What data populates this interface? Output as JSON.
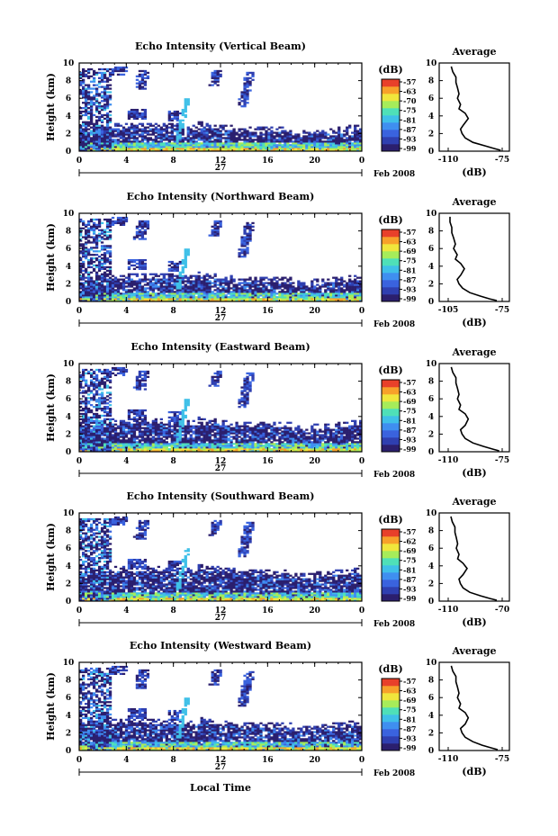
{
  "figure": {
    "xlabel": "Local Time",
    "date_label": "Feb 2008",
    "day_label": "27",
    "height_label": "Height (km)",
    "colorbar_unit": "(dB)",
    "avg_title": "Average",
    "avg_xlabel": "(dB)"
  },
  "chart_data": [
    {
      "type": "heatmap",
      "title": "Echo Intensity (Vertical Beam)",
      "xlabel": "Local Time",
      "ylabel": "Height (km)",
      "xlim": [
        0,
        24
      ],
      "ylim": [
        0,
        10
      ],
      "x_ticks": [
        "0",
        "4",
        "8",
        "12",
        "16",
        "20",
        "0"
      ],
      "y_ticks": [
        "0",
        "2",
        "4",
        "6",
        "8",
        "10"
      ],
      "colorbar_ticks": [
        "-57",
        "-63",
        "-70",
        "-75",
        "-81",
        "-87",
        "-93",
        "-99"
      ],
      "avg_profile": {
        "type": "line",
        "title": "Average",
        "xlabel": "(dB)",
        "xlim": [
          -110,
          -75
        ],
        "x_ticks": [
          "-110",
          "-75"
        ],
        "y_ticks": [
          "0",
          "2",
          "4",
          "6",
          "8",
          "10"
        ],
        "x": [
          -76,
          -80,
          -86,
          -94,
          -99,
          -101,
          -102,
          -100,
          -97,
          -99,
          -103,
          -102,
          -104,
          -103,
          -104,
          -105,
          -105,
          -107,
          -108
        ],
        "y": [
          0.1,
          0.3,
          0.6,
          1.0,
          1.5,
          2.0,
          2.5,
          3.0,
          3.7,
          4.3,
          4.8,
          5.3,
          6.0,
          6.5,
          7.2,
          7.8,
          8.4,
          9.0,
          9.6
        ]
      }
    },
    {
      "type": "heatmap",
      "title": "Echo Intensity (Northward Beam)",
      "xlabel": "Local Time",
      "ylabel": "Height (km)",
      "xlim": [
        0,
        24
      ],
      "ylim": [
        0,
        10
      ],
      "x_ticks": [
        "0",
        "4",
        "8",
        "12",
        "16",
        "20",
        "0"
      ],
      "y_ticks": [
        "0",
        "2",
        "4",
        "6",
        "8",
        "10"
      ],
      "colorbar_ticks": [
        "-57",
        "-63",
        "-69",
        "-75",
        "-81",
        "-87",
        "-93",
        "-99"
      ],
      "avg_profile": {
        "type": "line",
        "title": "Average",
        "xlabel": "(dB)",
        "xlim": [
          -105,
          -75
        ],
        "x_ticks": [
          "-105",
          "-75"
        ],
        "y_ticks": [
          "0",
          "2",
          "4",
          "6",
          "8",
          "10"
        ],
        "x": [
          -78,
          -82,
          -87,
          -93,
          -97,
          -99,
          -100,
          -98,
          -96,
          -98,
          -101,
          -100,
          -102,
          -101,
          -102,
          -103,
          -103,
          -104,
          -104
        ],
        "y": [
          0.1,
          0.3,
          0.6,
          1.0,
          1.5,
          2.0,
          2.5,
          3.0,
          3.7,
          4.3,
          4.8,
          5.3,
          6.0,
          6.5,
          7.2,
          7.8,
          8.4,
          9.0,
          9.6
        ]
      }
    },
    {
      "type": "heatmap",
      "title": "Echo Intensity (Eastward Beam)",
      "xlabel": "Local Time",
      "ylabel": "Height (km)",
      "xlim": [
        0,
        24
      ],
      "ylim": [
        0,
        10
      ],
      "x_ticks": [
        "0",
        "4",
        "8",
        "12",
        "16",
        "20",
        "0"
      ],
      "y_ticks": [
        "0",
        "2",
        "4",
        "6",
        "8",
        "10"
      ],
      "colorbar_ticks": [
        "-57",
        "-63",
        "-69",
        "-75",
        "-81",
        "-87",
        "-93",
        "-99"
      ],
      "avg_profile": {
        "type": "line",
        "title": "Average",
        "xlabel": "(dB)",
        "xlim": [
          -110,
          -75
        ],
        "x_ticks": [
          "-110",
          "-75"
        ],
        "y_ticks": [
          "0",
          "2",
          "4",
          "6",
          "8",
          "10"
        ],
        "x": [
          -77,
          -81,
          -87,
          -94,
          -99,
          -101,
          -102,
          -99,
          -97,
          -99,
          -103,
          -102,
          -104,
          -103,
          -104,
          -105,
          -105,
          -107,
          -108
        ],
        "y": [
          0.1,
          0.3,
          0.6,
          1.0,
          1.5,
          2.0,
          2.5,
          3.0,
          3.7,
          4.3,
          4.8,
          5.3,
          6.0,
          6.5,
          7.2,
          7.8,
          8.4,
          9.0,
          9.6
        ]
      }
    },
    {
      "type": "heatmap",
      "title": "Echo Intensity (Southward Beam)",
      "xlabel": "Local Time",
      "ylabel": "Height (km)",
      "xlim": [
        0,
        24
      ],
      "ylim": [
        0,
        10
      ],
      "x_ticks": [
        "0",
        "4",
        "8",
        "12",
        "16",
        "20",
        "0"
      ],
      "y_ticks": [
        "0",
        "2",
        "4",
        "6",
        "8",
        "10"
      ],
      "colorbar_ticks": [
        "-57",
        "-62",
        "-69",
        "-75",
        "-81",
        "-87",
        "-93",
        "-99"
      ],
      "avg_profile": {
        "type": "line",
        "title": "Average",
        "xlabel": "(dB)",
        "xlim": [
          -110,
          -70
        ],
        "x_ticks": [
          "-110",
          "-70"
        ],
        "y_ticks": [
          "0",
          "2",
          "4",
          "6",
          "8",
          "10"
        ],
        "x": [
          -74,
          -79,
          -86,
          -94,
          -99,
          -101,
          -102,
          -99,
          -96,
          -99,
          -103,
          -102,
          -104,
          -103,
          -104,
          -105,
          -105,
          -107,
          -108
        ],
        "y": [
          0.1,
          0.3,
          0.6,
          1.0,
          1.5,
          2.0,
          2.5,
          3.0,
          3.7,
          4.3,
          4.8,
          5.3,
          6.0,
          6.5,
          7.2,
          7.8,
          8.4,
          9.0,
          9.6
        ]
      }
    },
    {
      "type": "heatmap",
      "title": "Echo Intensity (Westward Beam)",
      "xlabel": "Local Time",
      "ylabel": "Height (km)",
      "xlim": [
        0,
        24
      ],
      "ylim": [
        0,
        10
      ],
      "x_ticks": [
        "0",
        "4",
        "8",
        "12",
        "16",
        "20",
        "0"
      ],
      "y_ticks": [
        "0",
        "2",
        "4",
        "6",
        "8",
        "10"
      ],
      "colorbar_ticks": [
        "-57",
        "-63",
        "-69",
        "-75",
        "-81",
        "-87",
        "-93",
        "-99"
      ],
      "avg_profile": {
        "type": "line",
        "title": "Average",
        "xlabel": "(dB)",
        "xlim": [
          -110,
          -75
        ],
        "x_ticks": [
          "-110",
          "-75"
        ],
        "y_ticks": [
          "0",
          "2",
          "4",
          "6",
          "8",
          "10"
        ],
        "x": [
          -78,
          -82,
          -88,
          -94,
          -99,
          -101,
          -102,
          -99,
          -97,
          -99,
          -103,
          -102,
          -104,
          -103,
          -104,
          -105,
          -105,
          -107,
          -108
        ],
        "y": [
          0.1,
          0.3,
          0.6,
          1.0,
          1.5,
          2.0,
          2.5,
          3.0,
          3.7,
          4.3,
          4.8,
          5.3,
          6.0,
          6.5,
          7.2,
          7.8,
          8.4,
          9.0,
          9.6
        ]
      }
    }
  ],
  "colormap": [
    "#2b1f6e",
    "#2f3fb0",
    "#3a63de",
    "#3f8ff0",
    "#3fc0e8",
    "#4fe0b8",
    "#a6ec5a",
    "#f0e63c",
    "#f7a12a",
    "#e8402a"
  ]
}
